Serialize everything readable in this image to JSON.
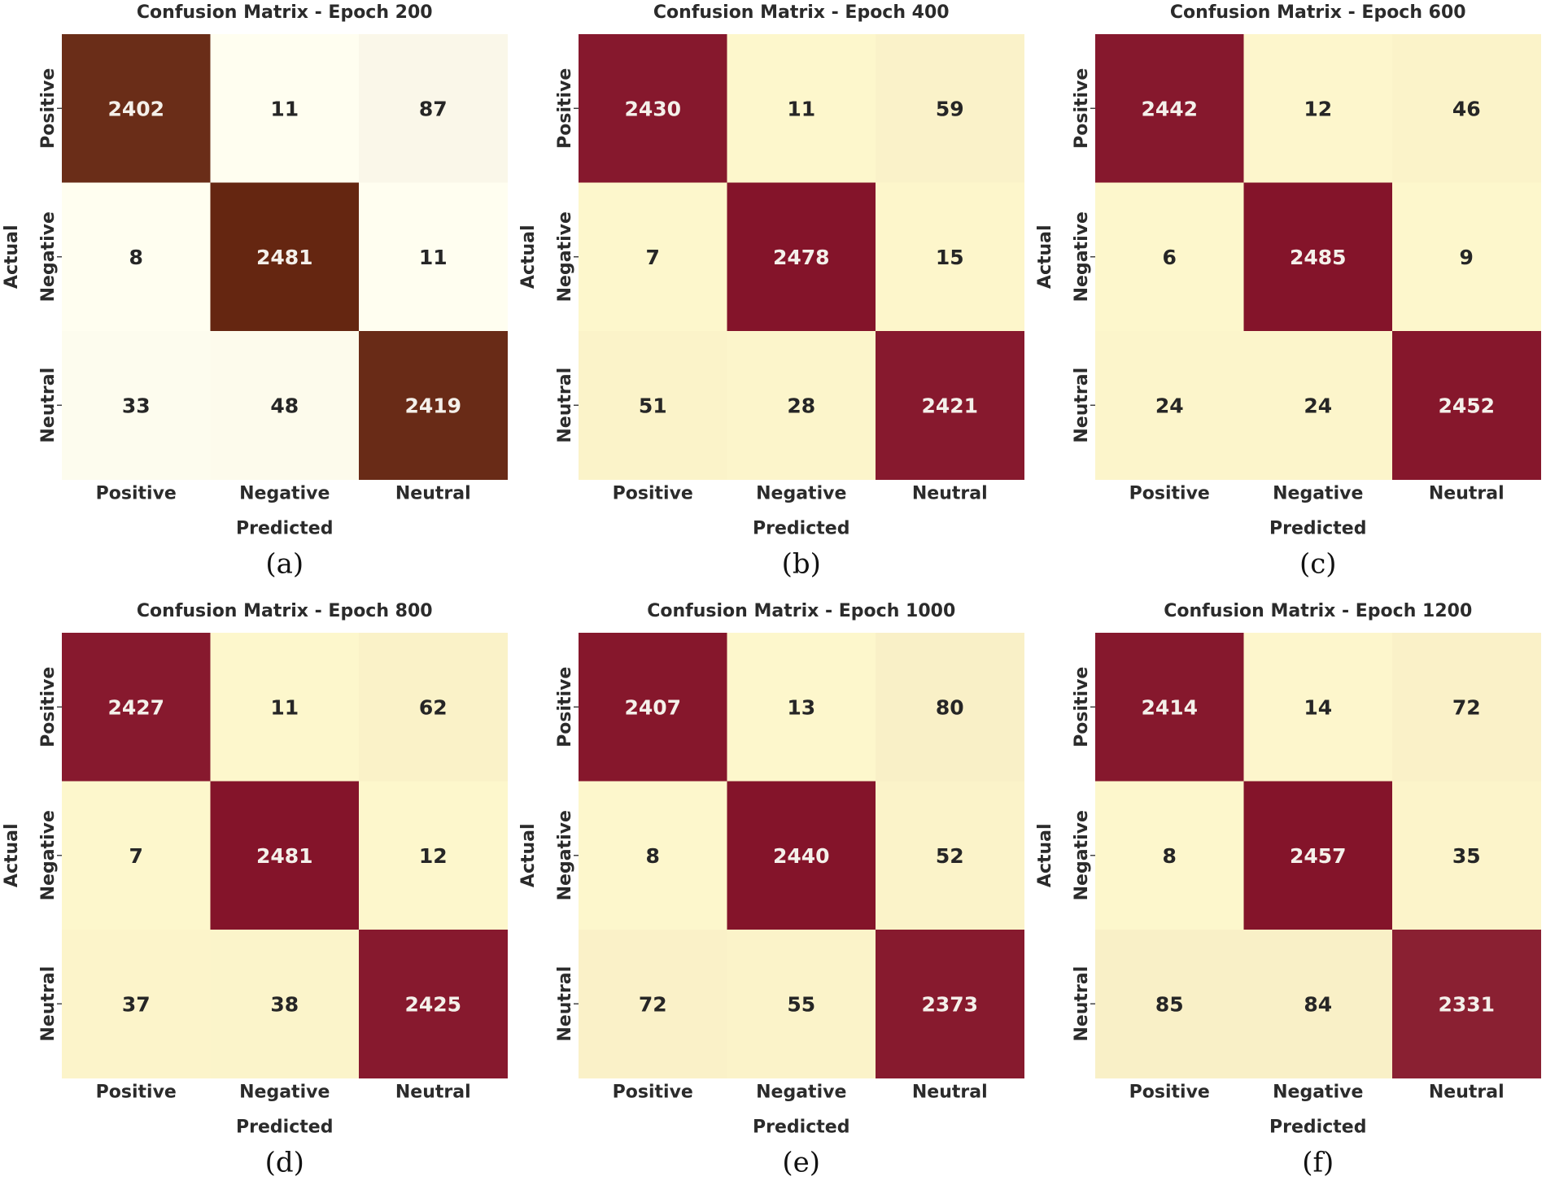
{
  "chart_data": [
    {
      "type": "heatmap",
      "title": "Confusion Matrix - Epoch 200",
      "caption": "(a)",
      "xlabel": "Predicted",
      "ylabel": "Actual",
      "x_categories": [
        "Positive",
        "Negative",
        "Neutral"
      ],
      "y_categories": [
        "Positive",
        "Negative",
        "Neutral"
      ],
      "values": [
        [
          2402,
          11,
          87
        ],
        [
          8,
          2481,
          11
        ],
        [
          33,
          48,
          2419
        ]
      ],
      "colors": {
        "low": "#fffef0",
        "high": "#652611"
      }
    },
    {
      "type": "heatmap",
      "title": "Confusion Matrix - Epoch 400",
      "caption": "(b)",
      "xlabel": "Predicted",
      "ylabel": "Actual",
      "x_categories": [
        "Positive",
        "Negative",
        "Neutral"
      ],
      "y_categories": [
        "Positive",
        "Negative",
        "Neutral"
      ],
      "values": [
        [
          2430,
          11,
          59
        ],
        [
          7,
          2478,
          15
        ],
        [
          51,
          28,
          2421
        ]
      ],
      "colors": {
        "low": "#fdf7cc",
        "high": "#84142a"
      }
    },
    {
      "type": "heatmap",
      "title": "Confusion Matrix - Epoch 600",
      "caption": "(c)",
      "xlabel": "Predicted",
      "ylabel": "Actual",
      "x_categories": [
        "Positive",
        "Negative",
        "Neutral"
      ],
      "y_categories": [
        "Positive",
        "Negative",
        "Neutral"
      ],
      "values": [
        [
          2442,
          12,
          46
        ],
        [
          6,
          2485,
          9
        ],
        [
          24,
          24,
          2452
        ]
      ],
      "colors": {
        "low": "#fdf7cc",
        "high": "#84142a"
      }
    },
    {
      "type": "heatmap",
      "title": "Confusion Matrix - Epoch 800",
      "caption": "(d)",
      "xlabel": "Predicted",
      "ylabel": "Actual",
      "x_categories": [
        "Positive",
        "Negative",
        "Neutral"
      ],
      "y_categories": [
        "Positive",
        "Negative",
        "Neutral"
      ],
      "values": [
        [
          2427,
          11,
          62
        ],
        [
          7,
          2481,
          12
        ],
        [
          37,
          38,
          2425
        ]
      ],
      "colors": {
        "low": "#fdf7cc",
        "high": "#84142a"
      }
    },
    {
      "type": "heatmap",
      "title": "Confusion Matrix - Epoch 1000",
      "caption": "(e)",
      "xlabel": "Predicted",
      "ylabel": "Actual",
      "x_categories": [
        "Positive",
        "Negative",
        "Neutral"
      ],
      "y_categories": [
        "Positive",
        "Negative",
        "Neutral"
      ],
      "values": [
        [
          2407,
          13,
          80
        ],
        [
          8,
          2440,
          52
        ],
        [
          72,
          55,
          2373
        ]
      ],
      "colors": {
        "low": "#fdf7cc",
        "high": "#84142a"
      }
    },
    {
      "type": "heatmap",
      "title": "Confusion Matrix - Epoch 1200",
      "caption": "(f)",
      "xlabel": "Predicted",
      "ylabel": "Actual",
      "x_categories": [
        "Positive",
        "Negative",
        "Neutral"
      ],
      "y_categories": [
        "Positive",
        "Negative",
        "Neutral"
      ],
      "values": [
        [
          2414,
          14,
          72
        ],
        [
          8,
          2457,
          35
        ],
        [
          85,
          84,
          2331
        ]
      ],
      "colors": {
        "low": "#fdf7cc",
        "high": "#84142a"
      }
    }
  ]
}
